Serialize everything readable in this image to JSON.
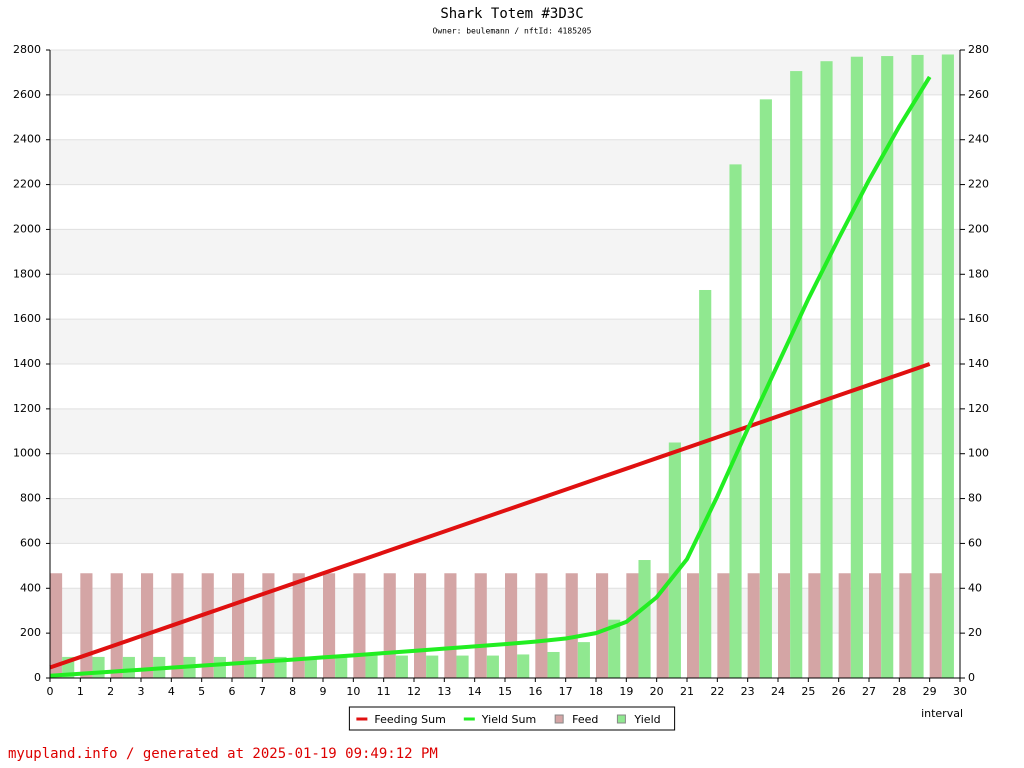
{
  "chart_data": {
    "type": "combo",
    "title": "Shark Totem #3D3C",
    "subtitle": "Owner: beulemann / nftId: 4185205",
    "x_label": "interval",
    "footer": "myupland.info / generated at 2025-01-19 09:49:12 PM",
    "x": [
      0,
      1,
      2,
      3,
      4,
      5,
      6,
      7,
      8,
      9,
      10,
      11,
      12,
      13,
      14,
      15,
      16,
      17,
      18,
      19,
      20,
      21,
      22,
      23,
      24,
      25,
      26,
      27,
      28,
      29
    ],
    "xlim": [
      0,
      30
    ],
    "xticks": [
      0,
      1,
      2,
      3,
      4,
      5,
      6,
      7,
      8,
      9,
      10,
      11,
      12,
      13,
      14,
      15,
      16,
      17,
      18,
      19,
      20,
      21,
      22,
      23,
      24,
      25,
      26,
      27,
      28,
      29,
      30
    ],
    "ylim": [
      0,
      2800
    ],
    "yticks": [
      0,
      200,
      400,
      600,
      800,
      1000,
      1200,
      1400,
      1600,
      1800,
      2000,
      2200,
      2400,
      2600,
      2800
    ],
    "y2lim": [
      0,
      280
    ],
    "y2ticks": [
      0,
      20,
      40,
      60,
      80,
      100,
      120,
      140,
      160,
      180,
      200,
      220,
      240,
      260,
      280
    ],
    "grid": true,
    "legend": "bottom",
    "series": [
      {
        "name": "Feeding Sum",
        "type": "line",
        "color": "#e01010",
        "values": [
          46.7,
          93.3,
          140,
          186.7,
          233.3,
          280,
          326.7,
          373.3,
          420,
          466.7,
          513.3,
          560,
          606.7,
          653.3,
          700,
          746.7,
          793.3,
          840,
          886.7,
          933.3,
          980,
          1026.7,
          1073.3,
          1120,
          1166.7,
          1213.3,
          1260,
          1306.7,
          1353.3,
          1400
        ]
      },
      {
        "name": "Yield Sum",
        "type": "line",
        "color": "#22ee22",
        "values": [
          10,
          19,
          28,
          37,
          46,
          55,
          64,
          73,
          82,
          92,
          101,
          111,
          121,
          131,
          141,
          151,
          162,
          176,
          200,
          250,
          360,
          530,
          810,
          1110,
          1400,
          1690,
          1960,
          2220,
          2460,
          2680
        ]
      },
      {
        "name": "Feed",
        "type": "bar",
        "axis": "y2",
        "color": "#d4a5a5",
        "values": [
          46.7,
          46.7,
          46.7,
          46.7,
          46.7,
          46.7,
          46.7,
          46.7,
          46.7,
          46.7,
          46.7,
          46.7,
          46.7,
          46.7,
          46.7,
          46.7,
          46.7,
          46.7,
          46.7,
          46.7,
          46.7,
          46.7,
          46.7,
          46.7,
          46.7,
          46.7,
          46.7,
          46.7,
          46.7,
          46.7
        ]
      },
      {
        "name": "Yield",
        "type": "bar",
        "axis": "y2",
        "color": "#90e890",
        "values": [
          9.4,
          9.4,
          9.4,
          9.4,
          9.4,
          9.4,
          9.4,
          9.4,
          9.4,
          9.4,
          10,
          10,
          10,
          10,
          10,
          10.5,
          11.6,
          16,
          26,
          52.6,
          105,
          173,
          229,
          258,
          270.6,
          275,
          277,
          277.3,
          277.8,
          278
        ]
      }
    ]
  }
}
